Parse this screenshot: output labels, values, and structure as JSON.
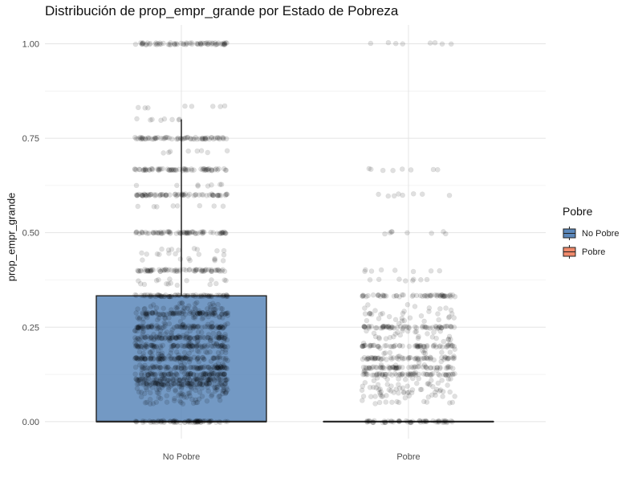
{
  "chart_data": {
    "type": "box",
    "title": "Distribución de prop_empr_grande por Estado de Pobreza",
    "xlabel": "",
    "ylabel": "prop_empr_grande",
    "categories": [
      "No Pobre",
      "Pobre"
    ],
    "ylim": [
      -0.045,
      1.05
    ],
    "yticks": [
      0.0,
      0.25,
      0.5,
      0.75,
      1.0
    ],
    "ytick_labels": [
      "0.00",
      "0.25",
      "0.50",
      "0.75",
      "1.00"
    ],
    "grid": true,
    "legend": {
      "title": "Pobre",
      "position": "right",
      "entries": [
        {
          "label": "No Pobre",
          "color": "#5b87ba"
        },
        {
          "label": "Pobre",
          "color": "#f08a6c"
        }
      ]
    },
    "boxes": [
      {
        "category": "No Pobre",
        "min": 0.0,
        "q1": 0.0,
        "median": 0.0,
        "q3": 0.333,
        "whisker_high": 0.8,
        "color": "#5b87ba"
      },
      {
        "category": "Pobre",
        "min": 0.0,
        "q1": 0.0,
        "median": 0.0,
        "q3": 0.0,
        "whisker_high": 0.0,
        "color": "#f08a6c"
      }
    ],
    "jitter_points": {
      "No Pobre": {
        "dense_levels": [
          0.0,
          0.1,
          0.111,
          0.125,
          0.143,
          0.167,
          0.2,
          0.222,
          0.25,
          0.286,
          0.333,
          0.4,
          0.5,
          0.6,
          0.667,
          0.75,
          1.0
        ],
        "sparse_levels": [
          0.05,
          0.067,
          0.077,
          0.083,
          0.09,
          0.182,
          0.231,
          0.273,
          0.3,
          0.3125,
          0.364,
          0.375,
          0.429,
          0.444,
          0.455,
          0.571,
          0.625,
          0.714,
          0.8,
          0.833
        ]
      },
      "Pobre": {
        "dense_levels": [
          0.0,
          0.125,
          0.143,
          0.167,
          0.2,
          0.25,
          0.333
        ],
        "sparse_levels": [
          0.05,
          0.067,
          0.077,
          0.083,
          0.091,
          0.1,
          0.111,
          0.222,
          0.286,
          0.375,
          0.4,
          0.5,
          0.6,
          0.667,
          1.0
        ]
      }
    }
  }
}
